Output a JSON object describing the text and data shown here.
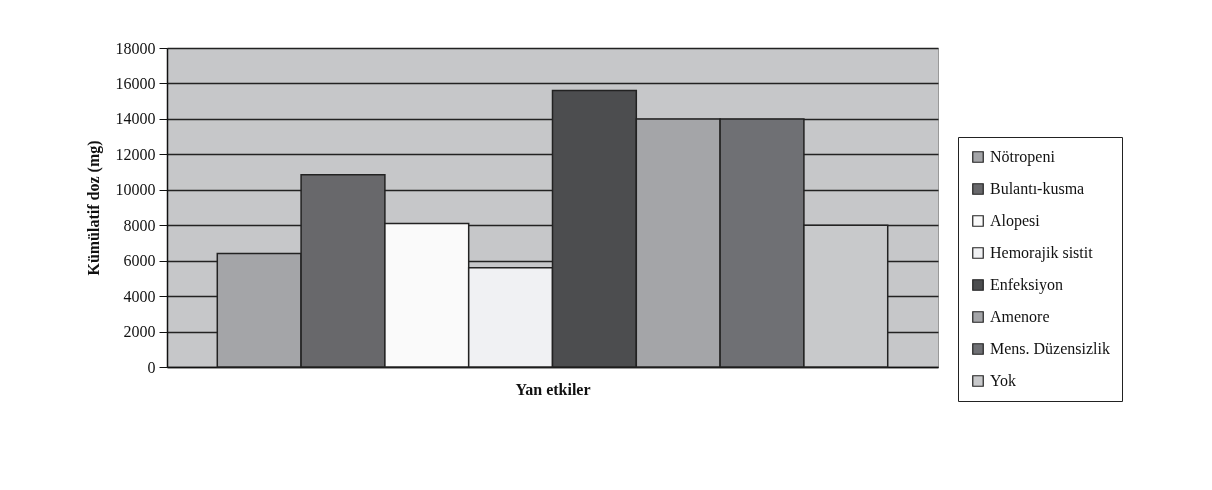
{
  "chart_data": {
    "type": "bar",
    "xlabel": "Yan etkiler",
    "ylabel": "Kümülatif doz (mg)",
    "categories": [
      null
    ],
    "series": [
      {
        "name": "Nötropeni",
        "color": "#a4a5a8",
        "values": [
          6400
        ]
      },
      {
        "name": "Bulantı-kusma",
        "color": "#68686b",
        "values": [
          10850
        ]
      },
      {
        "name": "Alopesi",
        "color": "#fafafa",
        "values": [
          8100
        ]
      },
      {
        "name": "Hemorajik sistit",
        "color": "#f0f1f3",
        "values": [
          5600
        ]
      },
      {
        "name": "Enfeksiyon",
        "color": "#4c4d4f",
        "values": [
          15600
        ]
      },
      {
        "name": "Amenore",
        "color": "#a4a5a8",
        "values": [
          14000
        ]
      },
      {
        "name": "Mens. Düzensizlik",
        "color": "#6f7074",
        "values": [
          14000
        ]
      },
      {
        "name": "Yok",
        "color": "#c8c9cb",
        "values": [
          8000
        ]
      }
    ],
    "ylim": [
      0,
      18000
    ],
    "yticks": [
      0,
      2000,
      4000,
      6000,
      8000,
      10000,
      12000,
      14000,
      16000,
      18000
    ],
    "grid": "y",
    "legend": "right"
  }
}
